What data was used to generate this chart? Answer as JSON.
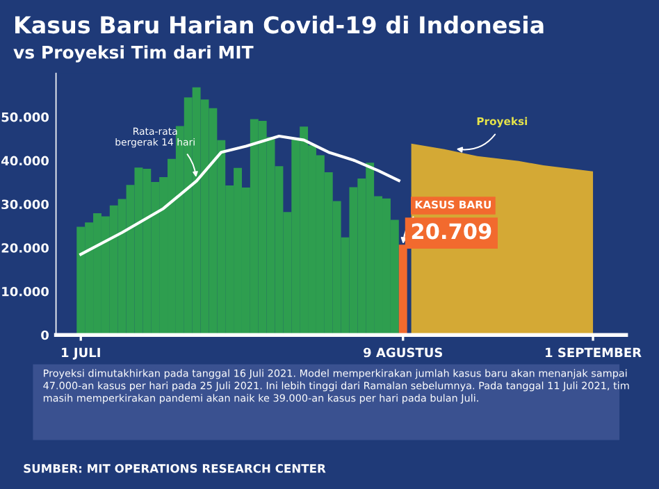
{
  "chart_data": {
    "type": "bar",
    "title": "Kasus Baru Harian Covid-19 di Indonesia",
    "subtitle": "vs Proyeksi Tim dari MIT",
    "series": [
      {
        "x": [
          "2021-07-01",
          "2021-07-02",
          "2021-07-03",
          "2021-07-04",
          "2021-07-05",
          "2021-07-06",
          "2021-07-07",
          "2021-07-08",
          "2021-07-09",
          "2021-07-10",
          "2021-07-11",
          "2021-07-12",
          "2021-07-13",
          "2021-07-14",
          "2021-07-15",
          "2021-07-16",
          "2021-07-17",
          "2021-07-18",
          "2021-07-19",
          "2021-07-20",
          "2021-07-21",
          "2021-07-22",
          "2021-07-23",
          "2021-07-24",
          "2021-07-25",
          "2021-07-26",
          "2021-07-27",
          "2021-07-28",
          "2021-07-29",
          "2021-07-30",
          "2021-07-31",
          "2021-08-01",
          "2021-08-02",
          "2021-08-03",
          "2021-08-04",
          "2021-08-05",
          "2021-08-06",
          "2021-08-07",
          "2021-08-08",
          "2021-08-09"
        ],
        "values": [
          24800,
          25800,
          27900,
          27200,
          29700,
          31200,
          34400,
          38400,
          38100,
          35100,
          36200,
          40400,
          47900,
          54500,
          56800,
          54000,
          52000,
          44700,
          34300,
          38300,
          33800,
          49500,
          49100,
          45400,
          38700,
          28200,
          45200,
          47800,
          43500,
          41200,
          37300,
          30700,
          22400,
          33900,
          35900,
          39500,
          31800,
          31300,
          26400,
          20709
        ],
        "colors": [
          "#2e9e4f",
          "#2e9e4f",
          "#2e9e4f",
          "#2e9e4f",
          "#2e9e4f",
          "#2e9e4f",
          "#2e9e4f",
          "#2e9e4f",
          "#2e9e4f",
          "#2e9e4f",
          "#2e9e4f",
          "#2e9e4f",
          "#2e9e4f",
          "#2e9e4f",
          "#2e9e4f",
          "#2e9e4f",
          "#2e9e4f",
          "#2e9e4f",
          "#2e9e4f",
          "#2e9e4f",
          "#2e9e4f",
          "#2e9e4f",
          "#2e9e4f",
          "#2e9e4f",
          "#2e9e4f",
          "#2e9e4f",
          "#2e9e4f",
          "#2e9e4f",
          "#2e9e4f",
          "#2e9e4f",
          "#2e9e4f",
          "#2e9e4f",
          "#2e9e4f",
          "#2e9e4f",
          "#2e9e4f",
          "#2e9e4f",
          "#2e9e4f",
          "#2e9e4f",
          "#2e9e4f",
          "#f26a2e"
        ],
        "value_labels": [
          null,
          null,
          null,
          null,
          null,
          null,
          null,
          null,
          null,
          null,
          null,
          null,
          null,
          null,
          null,
          null,
          null,
          null,
          null,
          null,
          null,
          null,
          null,
          null,
          null,
          null,
          null,
          null,
          null,
          null,
          null,
          null,
          null,
          null,
          null,
          null,
          null,
          null,
          null,
          "20.709"
        ]
      },
      {
        "type": "line",
        "color": "#ffffff",
        "x": [
          "2021-07-01",
          "2021-07-06",
          "2021-07-11",
          "2021-07-15",
          "2021-07-18",
          "2021-07-21",
          "2021-07-25",
          "2021-07-28",
          "2021-07-31",
          "2021-08-03",
          "2021-08-06",
          "2021-08-08T12:00"
        ],
        "values": [
          18500,
          23500,
          29000,
          35300,
          41900,
          43300,
          45600,
          44700,
          41900,
          40100,
          37700,
          35400
        ]
      },
      {
        "type": "area",
        "color": "#d4a935",
        "x": [
          "2021-08-10",
          "2021-08-14",
          "2021-08-18",
          "2021-08-23",
          "2021-08-26",
          "2021-09-01"
        ],
        "values": [
          43900,
          42600,
          41000,
          39900,
          38900,
          37500
        ]
      }
    ],
    "xlim": [
      "2021-06-28",
      "2021-09-05"
    ],
    "xticks": [
      {
        "value": "2021-07-01",
        "label": "1 JULI"
      },
      {
        "value": "2021-08-09",
        "label": "9 AGUSTUS"
      },
      {
        "value": "2021-09-01",
        "label": "1 SEPTEMBER"
      }
    ],
    "ylim": [
      0,
      60000
    ],
    "yticks": [
      {
        "value": 0,
        "label": "0"
      },
      {
        "value": 10000,
        "label": "10.000"
      },
      {
        "value": 20000,
        "label": "20.000"
      },
      {
        "value": 30000,
        "label": "30.000"
      },
      {
        "value": 40000,
        "label": "40.000"
      },
      {
        "value": 50000,
        "label": "50.000"
      }
    ],
    "annotations": [
      {
        "text": "Rata-rata\nbergerak 14 hari",
        "x": "2021-07-15",
        "y": 35300
      },
      {
        "text": "Proyeksi",
        "x": "2021-08-15",
        "y": 42800
      },
      {
        "text": "KASUS BARU",
        "x": "2021-08-09",
        "y": 20709
      },
      "Proyeksi dimutakhirkan pada tanggal 16 Juli 2021. Model memperkirakan jumlah kasus baru akan menanjak sampai 47.000-an kasus per hari pada 25 Juli 2021. Ini lebih tinggi dari Ramalan sebelumnya. Pada tanggal 11 Juli 2021, tim masih memperkirakan pandemi akan naik ke 39.000-an kasus per hari pada bulan Juli.",
      "SUMBER: MIT OPERATIONS RESEARCH CENTER"
    ],
    "grid": false,
    "legend": false
  }
}
